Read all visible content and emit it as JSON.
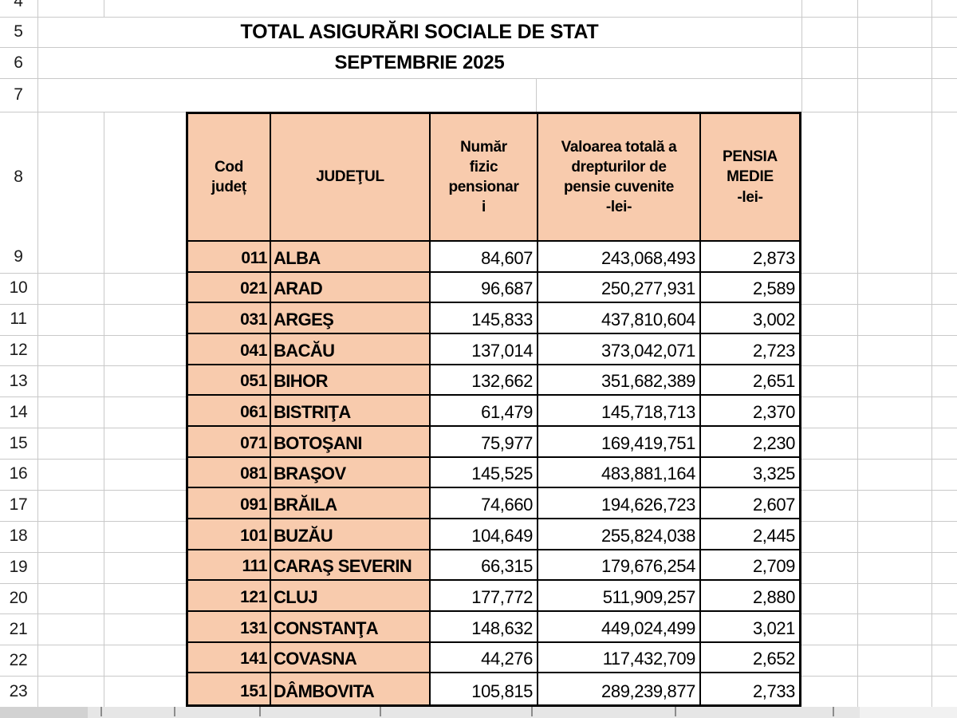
{
  "titles": {
    "line1": "TOTAL ASIGURĂRI SOCIALE DE STAT",
    "line2": "SEPTEMBRIE 2025"
  },
  "row_gutter": [
    "4",
    "5",
    "6",
    "7",
    "8",
    "9",
    "10",
    "11",
    "12",
    "13",
    "14",
    "15",
    "16",
    "17",
    "18",
    "19",
    "20",
    "21",
    "22",
    "23"
  ],
  "table": {
    "headers": [
      {
        "lines": [
          "Cod",
          "județ"
        ]
      },
      {
        "lines": [
          "JUDEŢUL"
        ]
      },
      {
        "lines": [
          "Număr",
          "fizic",
          "pensionar",
          "i"
        ]
      },
      {
        "lines": [
          "Valoarea totală a",
          "drepturilor de",
          "pensie cuvenite",
          "-lei-"
        ]
      },
      {
        "lines": [
          "PENSIA",
          "MEDIE",
          "-lei-"
        ]
      }
    ],
    "rows": [
      {
        "cod": "011",
        "judet": "ALBA",
        "numar": "84,607",
        "valoare": "243,068,493",
        "pensia": "2,873"
      },
      {
        "cod": "021",
        "judet": "ARAD",
        "numar": "96,687",
        "valoare": "250,277,931",
        "pensia": "2,589"
      },
      {
        "cod": "031",
        "judet": "ARGEŞ",
        "numar": "145,833",
        "valoare": "437,810,604",
        "pensia": "3,002"
      },
      {
        "cod": "041",
        "judet": "BACĂU",
        "numar": "137,014",
        "valoare": "373,042,071",
        "pensia": "2,723"
      },
      {
        "cod": "051",
        "judet": "BIHOR",
        "numar": "132,662",
        "valoare": "351,682,389",
        "pensia": "2,651"
      },
      {
        "cod": "061",
        "judet": "BISTRIŢA",
        "numar": "61,479",
        "valoare": "145,718,713",
        "pensia": "2,370"
      },
      {
        "cod": "071",
        "judet": "BOTOŞANI",
        "numar": "75,977",
        "valoare": "169,419,751",
        "pensia": "2,230"
      },
      {
        "cod": "081",
        "judet": "BRAŞOV",
        "numar": "145,525",
        "valoare": "483,881,164",
        "pensia": "3,325"
      },
      {
        "cod": "091",
        "judet": "BRĂILA",
        "numar": "74,660",
        "valoare": "194,626,723",
        "pensia": "2,607"
      },
      {
        "cod": "101",
        "judet": "BUZĂU",
        "numar": "104,649",
        "valoare": "255,824,038",
        "pensia": "2,445"
      },
      {
        "cod": "111",
        "judet": "CARAŞ SEVERIN",
        "numar": "66,315",
        "valoare": "179,676,254",
        "pensia": "2,709"
      },
      {
        "cod": "121",
        "judet": "CLUJ",
        "numar": "177,772",
        "valoare": "511,909,257",
        "pensia": "2,880"
      },
      {
        "cod": "131",
        "judet": "CONSTANŢA",
        "numar": "148,632",
        "valoare": "449,024,499",
        "pensia": "3,021"
      },
      {
        "cod": "141",
        "judet": "COVASNA",
        "numar": "44,276",
        "valoare": "117,432,709",
        "pensia": "2,652"
      },
      {
        "cod": "151",
        "judet": "DÂMBOVITA",
        "numar": "105,815",
        "valoare": "289,239,877",
        "pensia": "2,733"
      }
    ]
  },
  "colors": {
    "cell_fill": "#F8CBAD",
    "table_border": "#000000",
    "grid_line": "#c9c9c9",
    "gutter_text": "#1c1c1c"
  }
}
